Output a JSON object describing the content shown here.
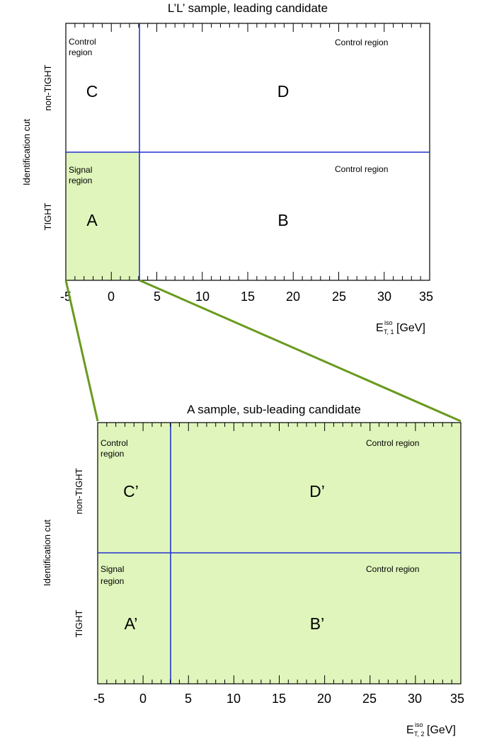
{
  "colors": {
    "frame": "#000000",
    "divider": "#2233cc",
    "signal_fill": "#e0f5bc",
    "zoom_line": "#6a9a1e"
  },
  "panels": [
    {
      "title": "L’L’ sample, leading candidate",
      "x_range": [
        -5,
        35
      ],
      "x_cut": 3,
      "tick_labels": [
        "-5",
        "0",
        "5",
        "10",
        "15",
        "20",
        "25",
        "30",
        "35"
      ],
      "x_label_main": "E",
      "x_label_sup": "iso",
      "x_label_sub": "T, 1",
      "x_label_unit": "[GeV]",
      "y_label": "Identification cut",
      "row_top": "non-TIGHT",
      "row_bottom": "TIGHT",
      "regions": {
        "top_left_note": [
          "Control",
          "region"
        ],
        "top_right_note": "Control region",
        "bottom_left_note": [
          "Signal",
          "region"
        ],
        "bottom_right_note": "Control region",
        "top_left_letter": "C",
        "top_right_letter": "D",
        "bottom_left_letter": "A",
        "bottom_right_letter": "B"
      }
    },
    {
      "title": "A  sample, sub-leading candidate",
      "x_range": [
        -5,
        35
      ],
      "x_cut": 3,
      "tick_labels": [
        "-5",
        "0",
        "5",
        "10",
        "15",
        "20",
        "25",
        "30",
        "35"
      ],
      "x_label_main": "E",
      "x_label_sup": "iso",
      "x_label_sub": "T, 2",
      "x_label_unit": "[GeV]",
      "y_label": "Identification cut",
      "row_top": "non-TIGHT",
      "row_bottom": "TIGHT",
      "regions": {
        "top_left_note": [
          "Control",
          "region"
        ],
        "top_right_note": "Control region",
        "bottom_left_note": [
          "Signal",
          "region"
        ],
        "bottom_right_note": "Control region",
        "top_left_letter": "C’",
        "top_right_letter": "D’",
        "bottom_left_letter": "A’",
        "bottom_right_letter": "B’"
      }
    }
  ]
}
